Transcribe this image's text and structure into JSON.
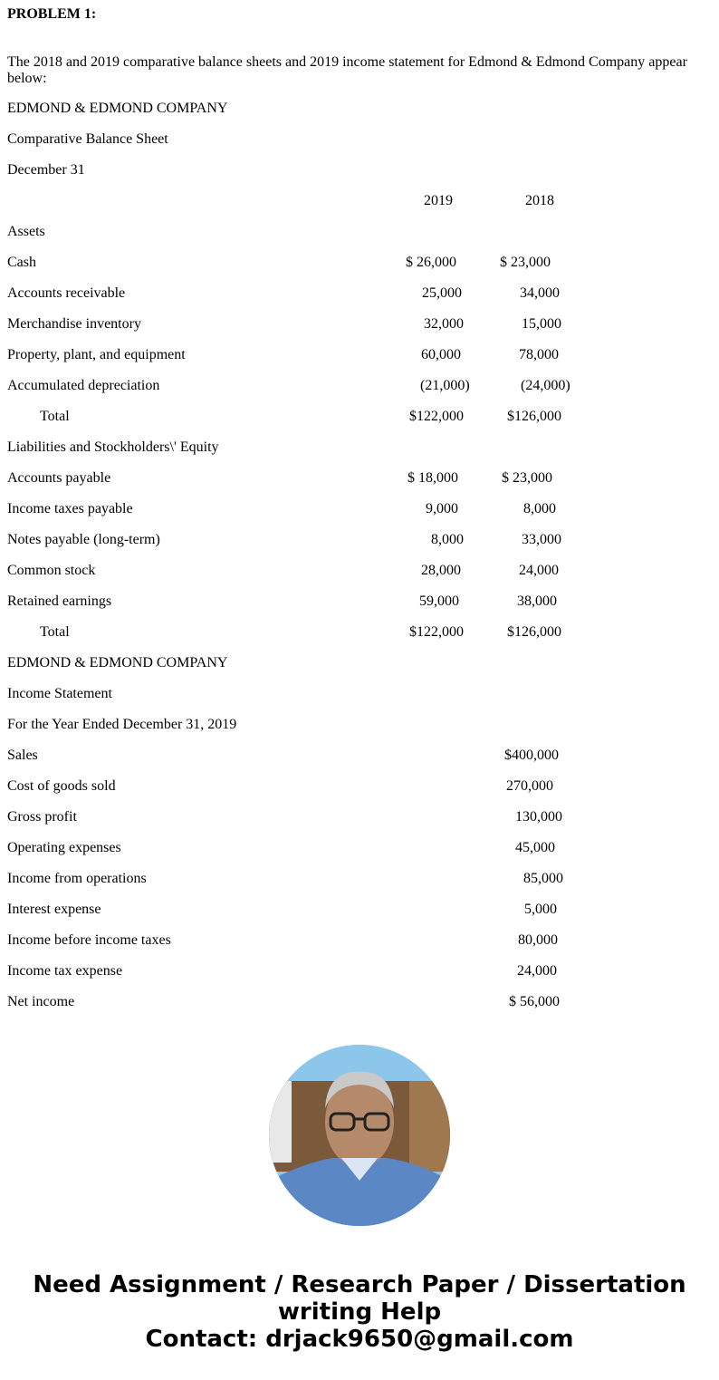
{
  "problem_title": "PROBLEM 1:",
  "intro": "The 2018 and 2019 comparative balance sheets and 2019 income statement for Edmond & Edmond Company appear below:",
  "balance_sheet": {
    "company": "EDMOND & EDMOND COMPANY",
    "title": "Comparative Balance Sheet",
    "date": "December 31",
    "years": [
      "2019",
      "2018"
    ],
    "rows": [
      {
        "label": "Assets",
        "values": []
      },
      {
        "label": "Cash",
        "values": [
          "$ 26,000",
          "$ 23,000"
        ]
      },
      {
        "label": "Accounts receivable",
        "values": [
          "25,000",
          "34,000"
        ]
      },
      {
        "label": "Merchandise inventory",
        "values": [
          "32,000",
          "15,000"
        ]
      },
      {
        "label": "Property, plant, and equipment",
        "values": [
          "60,000",
          "78,000"
        ]
      },
      {
        "label": "Accumulated depreciation",
        "values": [
          "(21,000)",
          "(24,000)"
        ]
      },
      {
        "label": "Total",
        "values": [
          "$122,000",
          "$126,000"
        ]
      },
      {
        "label": "Liabilities and Stockholders\\' Equity",
        "values": []
      },
      {
        "label": "Accounts payable",
        "values": [
          "$ 18,000",
          "$ 23,000"
        ]
      },
      {
        "label": "Income taxes payable",
        "values": [
          "9,000",
          "8,000"
        ]
      },
      {
        "label": "Notes payable (long-term)",
        "values": [
          "8,000",
          "33,000"
        ]
      },
      {
        "label": "Common stock",
        "values": [
          "28,000",
          "24,000"
        ]
      },
      {
        "label": "Retained earnings",
        "values": [
          "59,000",
          "38,000"
        ]
      },
      {
        "label": "Total",
        "values": [
          "$122,000",
          "$126,000"
        ]
      }
    ]
  },
  "income_statement": {
    "company": "EDMOND & EDMOND COMPANY",
    "title": "Income Statement",
    "period": "For the Year Ended December 31, 2019",
    "rows": [
      {
        "label": "Sales",
        "value": "$400,000"
      },
      {
        "label": "Cost of goods sold",
        "value": "270,000"
      },
      {
        "label": "Gross profit",
        "value": "130,000"
      },
      {
        "label": "Operating expenses",
        "value": "45,000"
      },
      {
        "label": "Income from operations",
        "value": "85,000"
      },
      {
        "label": "Interest expense",
        "value": "5,000"
      },
      {
        "label": "Income before income taxes",
        "value": "80,000"
      },
      {
        "label": "Income tax expense",
        "value": "24,000"
      },
      {
        "label": "Net income",
        "value": "$ 56,000"
      }
    ]
  },
  "footer": {
    "line1": "Need Assignment / Research Paper / Dissertation",
    "line2": "writing Help",
    "line3": "Contact: drjack9650@gmail.com"
  }
}
